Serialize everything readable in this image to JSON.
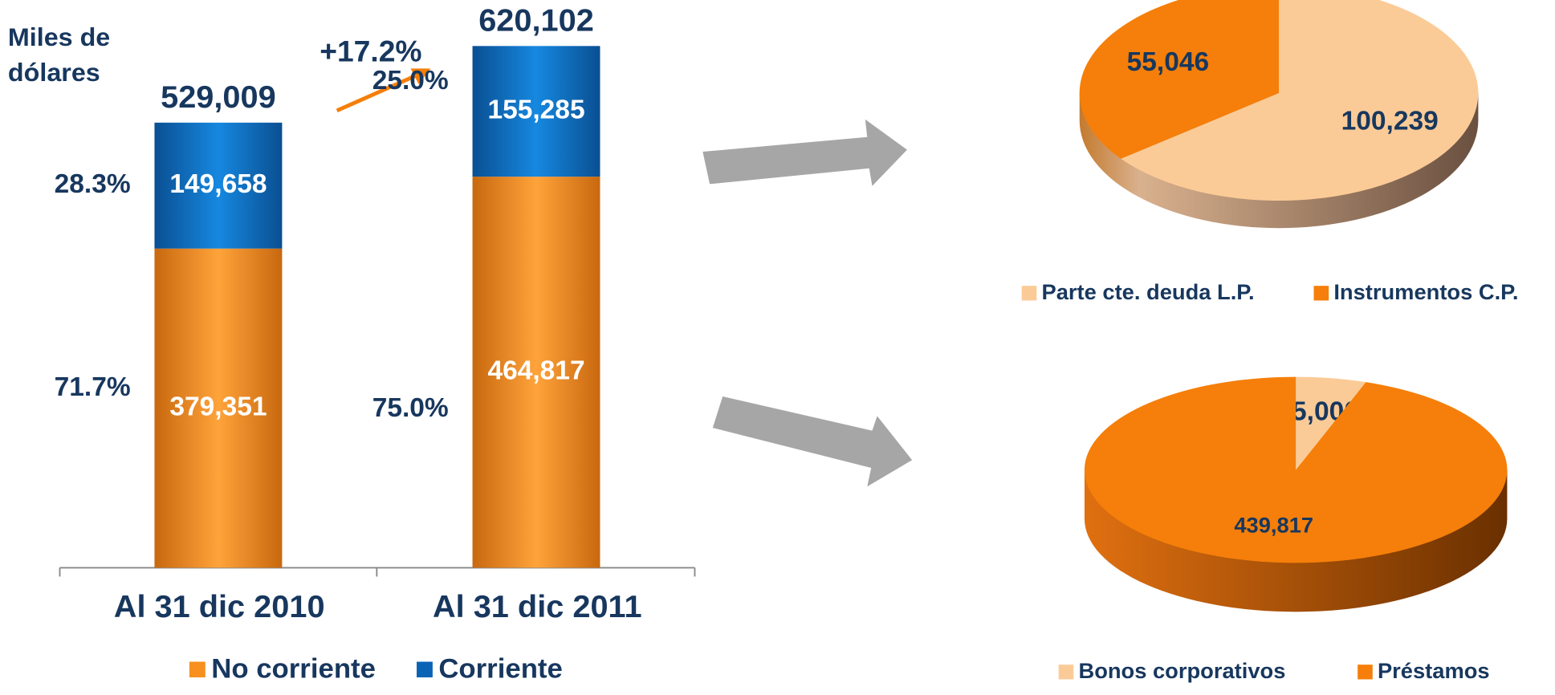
{
  "chart_data": [
    {
      "type": "bar",
      "y_label_lines": [
        "Miles de",
        "dólares"
      ],
      "categories": [
        "Al 31 dic 2010",
        "Al 31 dic 2011"
      ],
      "series": [
        {
          "name": "No corriente",
          "color": "#F7901E",
          "values": [
            379351,
            464817
          ],
          "value_labels": [
            "379,351",
            "464,817"
          ],
          "shares": [
            71.7,
            75.0
          ],
          "share_labels": [
            "71.7%",
            "75.0%"
          ]
        },
        {
          "name": "Corriente",
          "color": "#0B63B5",
          "values": [
            149658,
            155285
          ],
          "value_labels": [
            "149,658",
            "155,285"
          ],
          "shares": [
            28.3,
            25.0
          ],
          "share_labels": [
            "28.3%",
            "25.0%"
          ]
        }
      ],
      "totals": [
        529009,
        620102
      ],
      "total_labels": [
        "529,009",
        "620,102"
      ],
      "growth": 17.2,
      "growth_label": "+17.2%"
    },
    {
      "type": "pie",
      "categories": [
        "Parte cte. deuda L.P.",
        "Instrumentos C.P."
      ],
      "values": [
        100239,
        55046
      ],
      "value_labels": [
        "100,239",
        "55,046"
      ],
      "colors": [
        "#FBCB97",
        "#F57F0A"
      ]
    },
    {
      "type": "pie",
      "categories": [
        "Bonos corporativos",
        "Préstamos"
      ],
      "values": [
        25000,
        439817
      ],
      "value_labels": [
        "25,000",
        "439,817"
      ],
      "colors": [
        "#FBCB97",
        "#F57F0A"
      ]
    }
  ]
}
